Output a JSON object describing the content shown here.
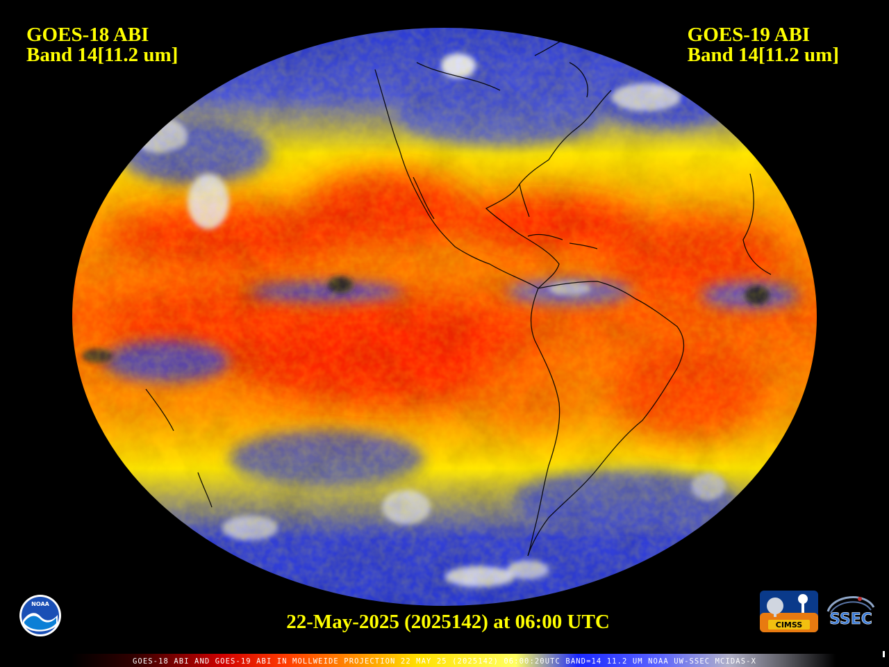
{
  "titles": {
    "left_line1": "GOES-18 ABI",
    "left_line2": "Band 14[11.2 um]",
    "right_line1": "GOES-19 ABI",
    "right_line2": "Band 14[11.2 um]"
  },
  "date_stamp": "22-May-2025 (2025142) at 06:00 UTC",
  "footer_text": "GOES-18 ABI AND GOES-19 ABI IN MOLLWEIDE PROJECTION 22 MAY 25 (2025142) 06:00:20UTC BAND=14 11.2 UM NOAA UW-SSEC MCIDAS-X",
  "logos": {
    "noaa": "NOAA",
    "cimss": "CIMSS",
    "ssec": "SSEC"
  },
  "colors": {
    "background": "#000000",
    "label_yellow": "#ffff00",
    "warm_red": "#ff2a00",
    "orange": "#ff8c00",
    "yellow": "#ffe600",
    "cold_blue": "#2b3bd6",
    "cloud_white": "#e8e8ee",
    "cloud_gray": "#9a9aa8",
    "coastline": "#000000"
  },
  "colorbar_stops": [
    "#202020",
    "#606060",
    "#9a0000",
    "#ff1e00",
    "#ff8c00",
    "#ffe600",
    "#ffff60",
    "#1e2bff",
    "#5a63ff",
    "#bfbfcf",
    "#ffffff"
  ]
}
